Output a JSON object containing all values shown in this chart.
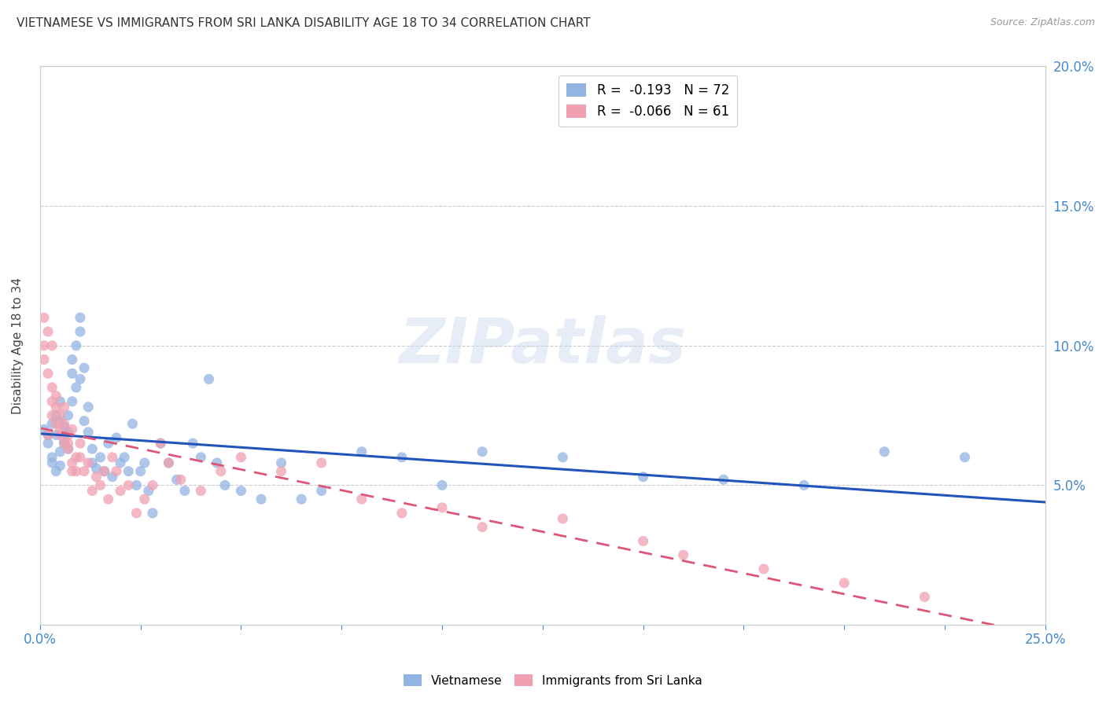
{
  "title": "VIETNAMESE VS IMMIGRANTS FROM SRI LANKA DISABILITY AGE 18 TO 34 CORRELATION CHART",
  "source": "Source: ZipAtlas.com",
  "ylabel": "Disability Age 18 to 34",
  "xlim": [
    0,
    0.25
  ],
  "ylim": [
    0,
    0.2
  ],
  "xticks": [
    0.0,
    0.025,
    0.05,
    0.075,
    0.1,
    0.125,
    0.15,
    0.175,
    0.2,
    0.225,
    0.25
  ],
  "xtick_labels_show": [
    true,
    false,
    false,
    false,
    false,
    false,
    false,
    false,
    false,
    false,
    true
  ],
  "yticks": [
    0.05,
    0.1,
    0.15,
    0.2
  ],
  "legend1_label": "R =  -0.193   N = 72",
  "legend2_label": "R =  -0.066   N = 61",
  "legend_xlabel": "Vietnamese",
  "legend_ylabel": "Immigrants from Sri Lanka",
  "blue_color": "#92B4E3",
  "pink_color": "#F0A0B0",
  "watermark": "ZIPatlas",
  "blue_x": [
    0.001,
    0.002,
    0.002,
    0.003,
    0.003,
    0.003,
    0.004,
    0.004,
    0.004,
    0.005,
    0.005,
    0.005,
    0.005,
    0.006,
    0.006,
    0.006,
    0.007,
    0.007,
    0.007,
    0.008,
    0.008,
    0.008,
    0.009,
    0.009,
    0.01,
    0.01,
    0.01,
    0.011,
    0.011,
    0.012,
    0.012,
    0.013,
    0.013,
    0.014,
    0.015,
    0.016,
    0.017,
    0.018,
    0.019,
    0.02,
    0.021,
    0.022,
    0.023,
    0.024,
    0.025,
    0.026,
    0.027,
    0.028,
    0.03,
    0.032,
    0.034,
    0.036,
    0.038,
    0.04,
    0.042,
    0.044,
    0.046,
    0.05,
    0.055,
    0.06,
    0.065,
    0.07,
    0.08,
    0.09,
    0.1,
    0.11,
    0.13,
    0.15,
    0.17,
    0.19,
    0.21,
    0.23
  ],
  "blue_y": [
    0.07,
    0.065,
    0.068,
    0.06,
    0.072,
    0.058,
    0.075,
    0.055,
    0.068,
    0.062,
    0.08,
    0.057,
    0.073,
    0.065,
    0.066,
    0.071,
    0.069,
    0.063,
    0.075,
    0.095,
    0.09,
    0.08,
    0.085,
    0.1,
    0.11,
    0.105,
    0.088,
    0.092,
    0.073,
    0.069,
    0.078,
    0.063,
    0.058,
    0.056,
    0.06,
    0.055,
    0.065,
    0.053,
    0.067,
    0.058,
    0.06,
    0.055,
    0.072,
    0.05,
    0.055,
    0.058,
    0.048,
    0.04,
    0.065,
    0.058,
    0.052,
    0.048,
    0.065,
    0.06,
    0.088,
    0.058,
    0.05,
    0.048,
    0.045,
    0.058,
    0.045,
    0.048,
    0.062,
    0.06,
    0.05,
    0.062,
    0.06,
    0.053,
    0.052,
    0.05,
    0.062,
    0.06
  ],
  "pink_x": [
    0.001,
    0.001,
    0.001,
    0.002,
    0.002,
    0.002,
    0.003,
    0.003,
    0.003,
    0.003,
    0.004,
    0.004,
    0.004,
    0.005,
    0.005,
    0.005,
    0.006,
    0.006,
    0.006,
    0.007,
    0.007,
    0.007,
    0.008,
    0.008,
    0.008,
    0.009,
    0.009,
    0.01,
    0.01,
    0.011,
    0.012,
    0.013,
    0.014,
    0.015,
    0.016,
    0.017,
    0.018,
    0.019,
    0.02,
    0.022,
    0.024,
    0.026,
    0.028,
    0.03,
    0.032,
    0.035,
    0.04,
    0.045,
    0.05,
    0.06,
    0.07,
    0.08,
    0.09,
    0.1,
    0.11,
    0.13,
    0.15,
    0.16,
    0.18,
    0.2,
    0.22
  ],
  "pink_y": [
    0.1,
    0.11,
    0.095,
    0.105,
    0.09,
    0.068,
    0.1,
    0.075,
    0.08,
    0.085,
    0.078,
    0.072,
    0.082,
    0.07,
    0.068,
    0.075,
    0.065,
    0.078,
    0.072,
    0.065,
    0.068,
    0.063,
    0.07,
    0.055,
    0.058,
    0.06,
    0.055,
    0.065,
    0.06,
    0.055,
    0.058,
    0.048,
    0.053,
    0.05,
    0.055,
    0.045,
    0.06,
    0.055,
    0.048,
    0.05,
    0.04,
    0.045,
    0.05,
    0.065,
    0.058,
    0.052,
    0.048,
    0.055,
    0.06,
    0.055,
    0.058,
    0.045,
    0.04,
    0.042,
    0.035,
    0.038,
    0.03,
    0.025,
    0.02,
    0.015,
    0.01
  ]
}
